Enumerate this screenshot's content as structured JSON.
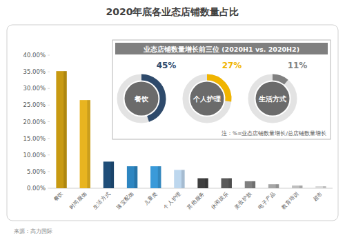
{
  "chart_data": [
    {
      "type": "bar",
      "title": "2020年底各业态店铺数量占比",
      "categories": [
        "餐饮",
        "时尚服饰",
        "生活方式",
        "珠宝配饰",
        "儿童类",
        "个人护理",
        "其他服务",
        "休闲娱乐",
        "美妆护肤",
        "电子产品",
        "教育培训",
        "超市"
      ],
      "values": [
        35.2,
        26.5,
        8.0,
        6.6,
        6.6,
        5.5,
        3.0,
        3.0,
        2.1,
        1.2,
        0.8,
        0.6
      ],
      "colors": [
        "#c89a12",
        "#e8b420",
        "#1f4e79",
        "#2e86c1",
        "#3a9ad9",
        "#bdd7ee",
        "#3f3f3f",
        "#595959",
        "#7f7f7f",
        "#a6a6a6",
        "#bfbfbf",
        "#d9d9d9"
      ],
      "ylim": [
        0,
        40
      ],
      "yticks": [
        {
          "value": 0,
          "label": "0.00%"
        },
        {
          "value": 5,
          "label": "5.00%"
        },
        {
          "value": 10,
          "label": "10.00%"
        },
        {
          "value": 15,
          "label": "15.00%"
        },
        {
          "value": 20,
          "label": "20.00%"
        },
        {
          "value": 25,
          "label": "25.00%"
        },
        {
          "value": 30,
          "label": "30.00%"
        },
        {
          "value": 35,
          "label": "35.00%"
        },
        {
          "value": 40,
          "label": "40.00%"
        }
      ],
      "grid": false,
      "annotations": [
        "来源：高力国际"
      ]
    },
    {
      "type": "donut",
      "title": "业态店铺数量增长前三位 (2020H1 vs. 2020H2)",
      "categories": [
        "餐饮",
        "个人护理",
        "生活方式"
      ],
      "values": [
        45,
        27,
        11
      ],
      "value_labels": [
        "45%",
        "27%",
        "11%"
      ],
      "colors": [
        "#2e4a6b",
        "#f0b400",
        "#808080"
      ],
      "data_labels": true,
      "annotations": [
        "注：%=业态店铺数量增长/总店铺数量增长"
      ]
    }
  ]
}
